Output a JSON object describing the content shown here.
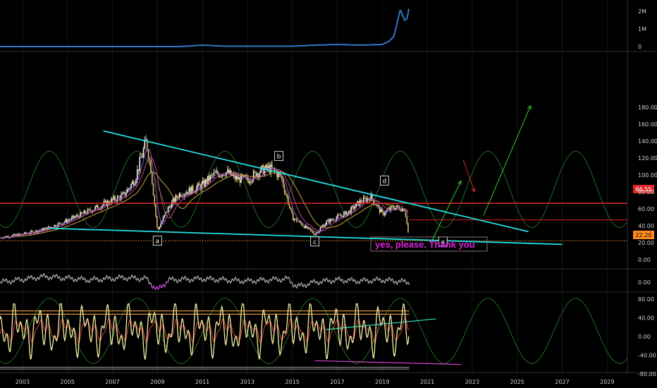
{
  "colors": {
    "background": "#000000",
    "grid": "#161616",
    "panel_divider": "#2f2f2f",
    "axis_text": "#d0d0d0",
    "volume_line": "#2f78c8",
    "trendline": "#22e0e6",
    "price_level_line": "#e02828",
    "current_level_line": "#d82020",
    "dotted_level": "#ff8c1a",
    "cycle_wave": "#1f6b1f",
    "arrow_up": "#33cc33",
    "arrow_down": "#e02828",
    "annotation_text": "#e020e0",
    "candle_up": "#f5f5f5",
    "candle_down": "#d8c060",
    "osc_yellow": "#f4f0a0",
    "osc_red": "#d84040",
    "osc_orange": "#f0a040",
    "osc_mid_line": "#909090",
    "osc_mint": "#40e8c0",
    "osc_magenta": "#d040d0"
  },
  "labels": {
    "a": "a",
    "b": "b",
    "c": "c",
    "d": "d",
    "e": "e",
    "annotation": "yes, please. Thank you",
    "price_badge_red": "66.55",
    "price_badge_orange": "22.20"
  },
  "chart_data": [
    {
      "panel": "volume",
      "type": "area",
      "y_ticks": [
        "2M",
        "1M",
        "0"
      ],
      "ylim": [
        0,
        2200000
      ],
      "x": [
        2002.0,
        2006.0,
        2008.0,
        2010.0,
        2011.0,
        2012.0,
        2013.0,
        2015.0,
        2016.0,
        2017.0,
        2018.0,
        2019.0,
        2019.3,
        2019.5,
        2019.6,
        2019.8,
        2020.0,
        2020.1,
        2020.2
      ],
      "values": [
        0,
        0,
        0,
        0,
        80000,
        20000,
        20000,
        20000,
        80000,
        120000,
        80000,
        120000,
        300000,
        550000,
        1000000,
        2100000,
        1500000,
        1600000,
        2300000
      ]
    },
    {
      "panel": "price",
      "type": "line",
      "y_ticks": [
        "180.00",
        "160.00",
        "140.00",
        "120.00",
        "100.00",
        "80.00",
        "60.00",
        "40.00",
        "20.00",
        "0.00"
      ],
      "ylim": [
        -10,
        195
      ],
      "x_ticks": [
        "2003",
        "2005",
        "2007",
        "2009",
        "2011",
        "2013",
        "2015",
        "2017",
        "2019",
        "2021",
        "2023",
        "2025",
        "2027",
        "2029"
      ],
      "series": [
        {
          "x": [
            2002.0,
            2003.0,
            2004.0,
            2005.0,
            2006.0,
            2007.0,
            2007.5,
            2008.0,
            2008.5,
            2008.7,
            2009.0,
            2009.5,
            2010.0,
            2010.5,
            2011.0,
            2011.5,
            2012.0,
            2012.5,
            2013.0,
            2013.5,
            2014.0,
            2014.5,
            2015.0,
            2015.5,
            2016.0,
            2016.5,
            2017.0,
            2017.5,
            2018.0,
            2018.5,
            2019.0,
            2019.5,
            2020.0,
            2020.1,
            2020.2
          ],
          "values": [
            26,
            30,
            36,
            46,
            58,
            70,
            76,
            95,
            140,
            110,
            34,
            62,
            78,
            82,
            88,
            100,
            104,
            96,
            94,
            104,
            108,
            98,
            50,
            40,
            30,
            44,
            50,
            56,
            68,
            74,
            54,
            62,
            60,
            42,
            22
          ]
        }
      ],
      "trendlines": [
        {
          "x": [
            2006.6,
            2025.5
          ],
          "values": [
            152,
            33
          ]
        },
        {
          "x": [
            2004.2,
            2027.0
          ],
          "values": [
            37,
            18
          ]
        }
      ],
      "levels": [
        {
          "value": 66.55,
          "style": "solid"
        },
        {
          "value": 47,
          "style": "solid"
        },
        {
          "value": 22.2,
          "style": "dotted"
        }
      ],
      "wave_labels": [
        {
          "name": "a",
          "x": 2009.0,
          "value": 22
        },
        {
          "name": "b",
          "x": 2014.4,
          "value": 122
        },
        {
          "name": "c",
          "x": 2016.0,
          "value": 21
        },
        {
          "name": "d",
          "x": 2019.1,
          "value": 93
        },
        {
          "name": "e",
          "x": 2021.7,
          "value": 21
        }
      ],
      "cycle": {
        "peaks": [
          2004.2,
          2008.1,
          2012.0,
          2015.9,
          2019.8,
          2023.7,
          2027.6
        ],
        "high": 128,
        "low": 38
      },
      "arrows": [
        {
          "color": "up",
          "from": [
            2021.2,
            22
          ],
          "to": [
            2022.5,
            93
          ]
        },
        {
          "color": "down",
          "from": [
            2022.6,
            118
          ],
          "to": [
            2023.1,
            80
          ]
        },
        {
          "color": "up",
          "from": [
            2023.5,
            52
          ],
          "to": [
            2025.6,
            182
          ]
        }
      ]
    },
    {
      "panel": "indicator",
      "type": "line",
      "y_ticks": [
        "0.00"
      ],
      "x": [
        2002.0,
        2004.0,
        2006.0,
        2007.5,
        2008.5,
        2009.0,
        2009.5,
        2011.0,
        2013.0,
        2014.8,
        2015.2,
        2016.0,
        2017.0,
        2018.0,
        2019.0,
        2020.2
      ],
      "values": [
        0,
        5,
        2,
        4,
        3,
        -7,
        2,
        3,
        1,
        3,
        -4,
        0,
        2,
        1,
        2,
        0
      ]
    },
    {
      "panel": "oscillator",
      "type": "line",
      "y_ticks": [
        "80.00",
        "40.00",
        "0.00",
        "-40.00",
        "-80.00"
      ],
      "ylim": [
        -95,
        90
      ],
      "levels": [
        {
          "value": 55,
          "color": "orange"
        },
        {
          "value": 48,
          "color": "orange"
        },
        {
          "value": -66,
          "color": "gray"
        },
        {
          "value": -70,
          "color": "gray"
        }
      ],
      "trendlines": [
        {
          "color": "mint",
          "x": [
            2016.5,
            2021.4
          ],
          "values": [
            15,
            38
          ]
        },
        {
          "color": "magenta",
          "x": [
            2016.0,
            2022.5
          ],
          "values": [
            -52,
            -60
          ]
        }
      ]
    }
  ]
}
